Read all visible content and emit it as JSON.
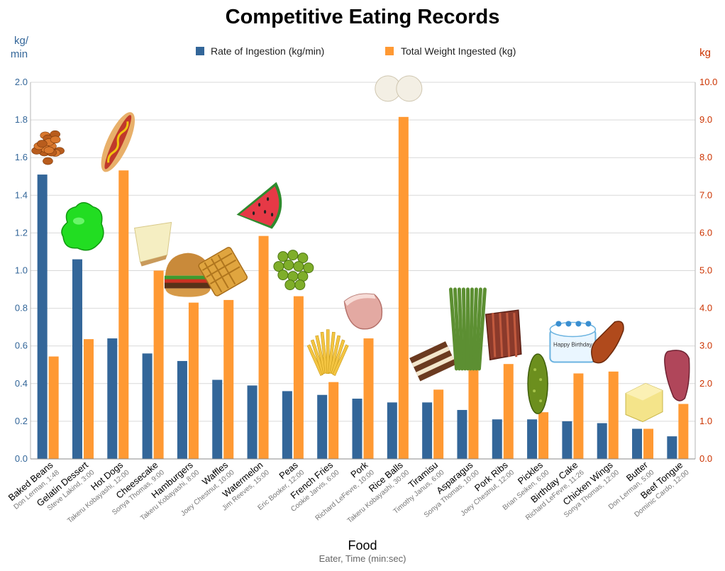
{
  "chart_data": {
    "type": "bar",
    "title": "Competitive Eating Records",
    "xlabel": "Food",
    "xlabel_sub": "Eater, Time (min:sec)",
    "y_left": {
      "unit_line1": "kg/",
      "unit_line2": "min",
      "range": [
        0,
        2.0
      ],
      "ticks": [
        "0.0",
        "0.2",
        "0.4",
        "0.6",
        "0.8",
        "1.0",
        "1.2",
        "1.4",
        "1.6",
        "1.8",
        "2.0"
      ]
    },
    "y_right": {
      "unit": "kg",
      "range": [
        0,
        10.0
      ],
      "ticks": [
        "0.0",
        "1.0",
        "2.0",
        "3.0",
        "4.0",
        "5.0",
        "6.0",
        "7.0",
        "8.0",
        "9.0",
        "10.0"
      ]
    },
    "grid": true,
    "legend_position": "top-center",
    "colors": {
      "rate": "#336699",
      "weight": "#ff9933",
      "title": "#000000",
      "left_axis": "#336699",
      "right_axis": "#cc3300",
      "grid": "#d9d9d9"
    },
    "categories": [
      "Baked Beans",
      "Gelatin Dessert",
      "Hot Dogs",
      "Cheesecake",
      "Hamburgers",
      "Waffles",
      "Watermelon",
      "Peas",
      "French Fries",
      "Pork",
      "Rice Balls",
      "Tiramisu",
      "Asparagus",
      "Pork Ribs",
      "Pickles",
      "Birthday Cake",
      "Chicken Wings",
      "Butter",
      "Beef Tongue"
    ],
    "subtitles": [
      "Don Lerman, 1:48",
      "Steve Lakind, 3:00",
      "Takeru Kobayashi, 12:00",
      "Sonya Thomas, 9:00",
      "Takeru Kobayashi, 8:00",
      "Joey Chestnut, 10:00",
      "Jim Reeves, 15:00",
      "Eric Booker, 12:00",
      "Cookie Jarvis, 6:00",
      "Richard LeFevre, 10:00",
      "Takeru Kobayashi, 30:00",
      "Timothy Janus, 6:00",
      "Sonya Thomas, 10:00",
      "Joey Chestnut, 12:00",
      "Brian Seiken, 6:00",
      "Richard LeFevre, 11:26",
      "Sonya Thomas, 12:00",
      "Don Lerman, 5:00",
      "Dominic Cardo, 12:00"
    ],
    "food_icons": [
      "beans-icon",
      "gelatin-icon",
      "hot-dog-icon",
      "cheesecake-icon",
      "hamburger-icon",
      "waffle-icon",
      "watermelon-icon",
      "peas-icon",
      "french-fries-icon",
      "pork-icon",
      "rice-balls-icon",
      "tiramisu-icon",
      "asparagus-icon",
      "pork-ribs-icon",
      "pickle-icon",
      "birthday-cake-icon",
      "chicken-wing-icon",
      "butter-icon",
      "beef-tongue-icon"
    ],
    "cake_text": "Happy Birthday",
    "series": [
      {
        "name": "Rate of Ingestion (kg/min)",
        "axis": "left",
        "values": [
          1.51,
          1.06,
          0.64,
          0.56,
          0.52,
          0.42,
          0.39,
          0.36,
          0.34,
          0.32,
          0.3,
          0.3,
          0.26,
          0.21,
          0.21,
          0.2,
          0.19,
          0.16,
          0.12
        ]
      },
      {
        "name": "Total Weight Ingested (kg)",
        "axis": "right",
        "values": [
          2.72,
          3.18,
          7.66,
          5.0,
          4.15,
          4.22,
          5.92,
          4.32,
          2.04,
          3.2,
          9.08,
          1.84,
          2.62,
          2.52,
          1.24,
          2.27,
          2.32,
          0.8,
          1.46
        ]
      }
    ]
  }
}
